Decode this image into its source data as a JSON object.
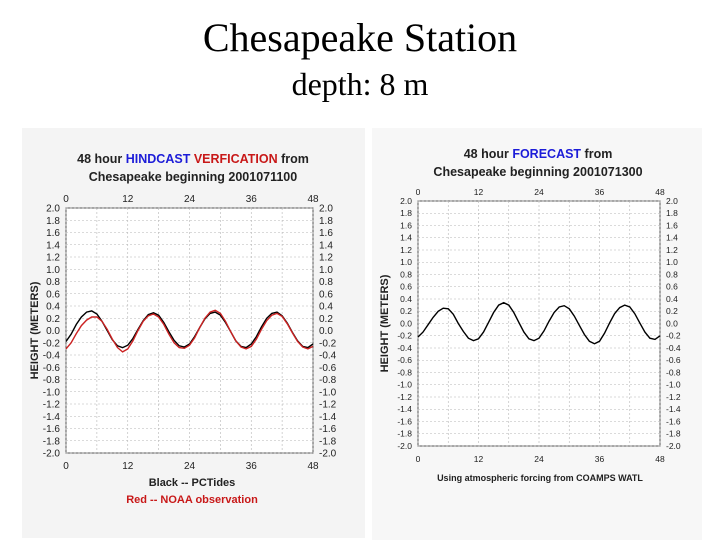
{
  "slide": {
    "title": "Chesapeake Station",
    "subtitle": "depth: 8 m"
  },
  "colors": {
    "hindcast_word": "#1c1cd8",
    "verification_word": "#c81818",
    "forecast_word": "#1c1cd8",
    "model_line": "#000000",
    "observation_line": "#cc2222",
    "legend_observation": "#c81818",
    "grid": "#b5b5b5",
    "text": "#222222"
  },
  "chart_data": [
    {
      "type": "line",
      "title_parts": [
        "48 hour ",
        "HINDCAST VERFICATION",
        " from"
      ],
      "title_line2": "Chesapeake beginning 2001071100",
      "xlabel": "",
      "ylabel": "HEIGHT (METERS)",
      "xlim": [
        0,
        48
      ],
      "ylim": [
        -2.0,
        2.0
      ],
      "x_ticks": [
        "0",
        "12",
        "24",
        "36",
        "48"
      ],
      "y_ticks": [
        "2.0",
        "1.8",
        "1.6",
        "1.4",
        "1.2",
        "1.0",
        "0.8",
        "0.6",
        "0.4",
        "0.2",
        "0.0",
        "-0.2",
        "-0.4",
        "-0.6",
        "-0.8",
        "-1.0",
        "-1.2",
        "-1.4",
        "-1.6",
        "-1.8",
        "-2.0"
      ],
      "grid": true,
      "legend": [
        "Black -- PCTides",
        "Red -- NOAA observation"
      ],
      "series": [
        {
          "name": "PCTides",
          "color": "black",
          "x": [
            0,
            1,
            2,
            3,
            4,
            5,
            6,
            7,
            8,
            9,
            10,
            11,
            12,
            13,
            14,
            15,
            16,
            17,
            18,
            19,
            20,
            21,
            22,
            23,
            24,
            25,
            26,
            27,
            28,
            29,
            30,
            31,
            32,
            33,
            34,
            35,
            36,
            37,
            38,
            39,
            40,
            41,
            42,
            43,
            44,
            45,
            46,
            47,
            48
          ],
          "y": [
            -0.18,
            -0.06,
            0.1,
            0.22,
            0.3,
            0.32,
            0.27,
            0.15,
            0.0,
            -0.15,
            -0.25,
            -0.28,
            -0.24,
            -0.13,
            0.02,
            0.16,
            0.26,
            0.29,
            0.25,
            0.13,
            -0.02,
            -0.16,
            -0.25,
            -0.27,
            -0.22,
            -0.1,
            0.05,
            0.19,
            0.28,
            0.3,
            0.25,
            0.13,
            -0.02,
            -0.17,
            -0.26,
            -0.28,
            -0.22,
            -0.1,
            0.06,
            0.2,
            0.28,
            0.3,
            0.24,
            0.12,
            -0.03,
            -0.17,
            -0.26,
            -0.28,
            -0.22
          ]
        },
        {
          "name": "NOAA observation",
          "color": "red",
          "x": [
            0,
            1,
            2,
            3,
            4,
            5,
            6,
            7,
            8,
            9,
            10,
            11,
            12,
            13,
            14,
            15,
            16,
            17,
            18,
            19,
            20,
            21,
            22,
            23,
            24,
            25,
            26,
            27,
            28,
            29,
            30,
            31,
            32,
            33,
            34,
            35,
            36,
            37,
            38,
            39,
            40,
            41,
            42,
            43,
            44,
            45,
            46,
            47,
            48
          ],
          "y": [
            -0.3,
            -0.2,
            -0.05,
            0.08,
            0.17,
            0.22,
            0.22,
            0.15,
            0.02,
            -0.14,
            -0.28,
            -0.35,
            -0.3,
            -0.17,
            0.0,
            0.15,
            0.24,
            0.27,
            0.22,
            0.1,
            -0.06,
            -0.2,
            -0.28,
            -0.29,
            -0.24,
            -0.12,
            0.05,
            0.2,
            0.3,
            0.33,
            0.28,
            0.15,
            -0.02,
            -0.17,
            -0.27,
            -0.3,
            -0.26,
            -0.14,
            0.02,
            0.16,
            0.25,
            0.28,
            0.23,
            0.11,
            -0.04,
            -0.18,
            -0.27,
            -0.3,
            -0.26
          ]
        }
      ]
    },
    {
      "type": "line",
      "title_parts": [
        "48 hour ",
        "FORECAST",
        " from"
      ],
      "title_line2": "Chesapeake beginning 2001071300",
      "xlabel": "",
      "ylabel": "HEIGHT (METERS)",
      "xlim": [
        0,
        48
      ],
      "ylim": [
        -2.0,
        2.0
      ],
      "x_ticks": [
        "0",
        "12",
        "24",
        "36",
        "48"
      ],
      "y_ticks": [
        "2.0",
        "1.8",
        "1.6",
        "1.4",
        "1.2",
        "1.0",
        "0.8",
        "0.6",
        "0.4",
        "0.2",
        "0.0",
        "-0.2",
        "-0.4",
        "-0.6",
        "-0.8",
        "-1.0",
        "-1.2",
        "-1.4",
        "-1.6",
        "-1.8",
        "-2.0"
      ],
      "grid": true,
      "footnote": "Using atmospheric forcing from COAMPS WATL",
      "series": [
        {
          "name": "forecast",
          "color": "black",
          "x": [
            0,
            1,
            2,
            3,
            4,
            5,
            6,
            7,
            8,
            9,
            10,
            11,
            12,
            13,
            14,
            15,
            16,
            17,
            18,
            19,
            20,
            21,
            22,
            23,
            24,
            25,
            26,
            27,
            28,
            29,
            30,
            31,
            32,
            33,
            34,
            35,
            36,
            37,
            38,
            39,
            40,
            41,
            42,
            43,
            44,
            45,
            46,
            47,
            48
          ],
          "y": [
            -0.22,
            -0.14,
            -0.02,
            0.1,
            0.2,
            0.25,
            0.24,
            0.15,
            0.0,
            -0.13,
            -0.24,
            -0.28,
            -0.25,
            -0.14,
            0.02,
            0.18,
            0.3,
            0.34,
            0.3,
            0.18,
            0.02,
            -0.14,
            -0.25,
            -0.28,
            -0.24,
            -0.12,
            0.04,
            0.18,
            0.27,
            0.29,
            0.24,
            0.12,
            -0.03,
            -0.18,
            -0.29,
            -0.33,
            -0.29,
            -0.16,
            0.01,
            0.16,
            0.26,
            0.3,
            0.27,
            0.16,
            0.01,
            -0.14,
            -0.24,
            -0.26,
            -0.2
          ]
        }
      ]
    }
  ]
}
